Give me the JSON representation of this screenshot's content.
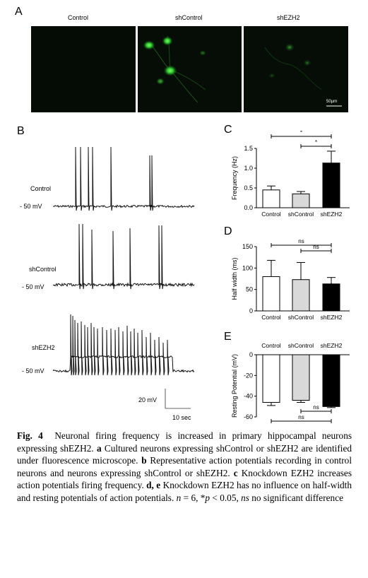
{
  "panels": {
    "a": "A",
    "b": "B",
    "c": "C",
    "d": "D",
    "e": "E"
  },
  "micrographs": {
    "titles": [
      "Control",
      "shControl",
      "shEZH2"
    ],
    "scale_bar": "50μm"
  },
  "traces": {
    "labels": [
      "Control",
      "shControl",
      "shEZH2"
    ],
    "voltage": "- 50 mV",
    "scale_v": "20 mV",
    "scale_t": "10 sec"
  },
  "chart_data": [
    {
      "type": "bar",
      "panel": "C",
      "categories": [
        "Control",
        "shControl",
        "shEZH2"
      ],
      "values": [
        0.45,
        0.35,
        1.13
      ],
      "errors": [
        0.1,
        0.06,
        0.3
      ],
      "ylabel": "Frequency (Hz)",
      "ylim": [
        0,
        1.5
      ],
      "yticks": [
        "0.0",
        "0.5",
        "1.0",
        "1.5"
      ],
      "significance": [
        {
          "from": "Control",
          "to": "shEZH2",
          "label": "*"
        },
        {
          "from": "shControl",
          "to": "shEZH2",
          "label": "*"
        }
      ],
      "colors": [
        "#ffffff",
        "#d9d9d9",
        "#000000"
      ]
    },
    {
      "type": "bar",
      "panel": "D",
      "categories": [
        "Control",
        "shControl",
        "shEZH2"
      ],
      "values": [
        80,
        73,
        63
      ],
      "errors": [
        38,
        40,
        15
      ],
      "ylabel": "Half width (ms)",
      "ylim": [
        0,
        150
      ],
      "yticks": [
        "0",
        "50",
        "100",
        "150"
      ],
      "significance": [
        {
          "from": "Control",
          "to": "shEZH2",
          "label": "ns"
        },
        {
          "from": "shControl",
          "to": "shEZH2",
          "label": "ns"
        }
      ],
      "colors": [
        "#ffffff",
        "#d9d9d9",
        "#000000"
      ]
    },
    {
      "type": "bar",
      "panel": "E",
      "categories": [
        "Control",
        "shControl",
        "shEZH2"
      ],
      "values": [
        -46,
        -44,
        -50
      ],
      "errors": [
        3,
        2,
        1
      ],
      "ylabel": "Resting Potential (mV)",
      "ylim": [
        -60,
        0
      ],
      "yticks": [
        "0",
        "-20",
        "-40",
        "-60"
      ],
      "significance": [
        {
          "from": "shControl",
          "to": "shEZH2",
          "label": "ns"
        },
        {
          "from": "Control",
          "to": "shEZH2",
          "label": "ns"
        }
      ],
      "colors": [
        "#ffffff",
        "#d9d9d9",
        "#000000"
      ]
    }
  ],
  "caption": {
    "fig": "Fig. 4",
    "title": "Neuronal firing frequency is increased in primary hippocampal neurons expressing shEZH2.",
    "a_key": "a",
    "a_text": "Cultured neurons expressing shControl or shEZH2 are identified under fluorescence microscope.",
    "b_key": "b",
    "b_text": "Representative action potentials recording in control neurons and neurons expressing shControl or shEZH2.",
    "c_key": "c",
    "c_text": "Knockdown EZH2 increases action potentials firing frequency.",
    "de_key": "d, e",
    "de_text": "Knockdown EZH2 has no influence on half-width and resting potentials of action potentials.",
    "n_text": "n",
    "n_rest": " = 6, *",
    "p_text": "p",
    "p_rest": " < 0.05, ",
    "ns_text": "ns",
    "ns_rest": " no significant difference"
  }
}
